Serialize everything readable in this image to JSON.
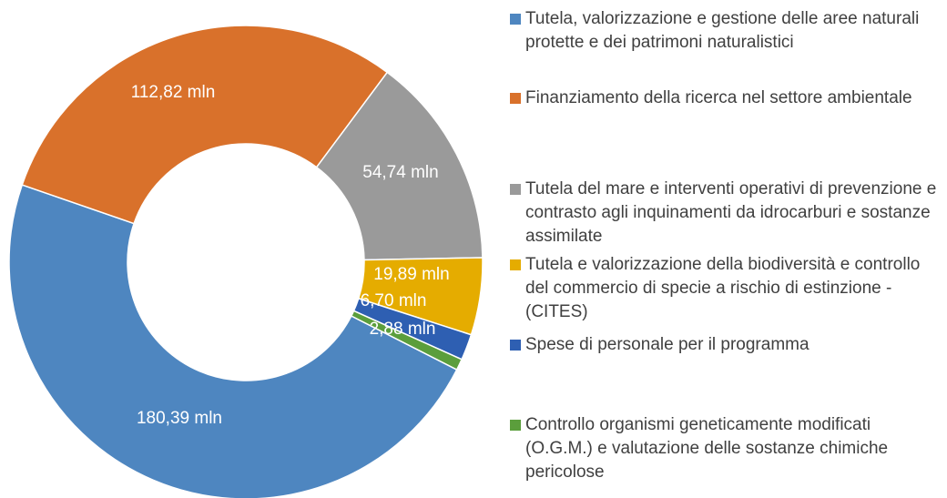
{
  "chart_data": {
    "type": "donut",
    "categories": [
      "Tutela, valorizzazione  e gestione delle aree naturali protette e dei patrimoni naturalistici",
      "Finanziamento della ricerca nel settore ambientale",
      "Tutela del mare e interventi operativi di prevenzione e contrasto agli inquinamenti da idrocarburi e sostanze assimilate",
      "Tutela e valorizzazione della biodiversità e controllo del commercio di specie a rischio di estinzione - (CITES)",
      "Spese di personale per il programma",
      "Controllo organismi geneticamente modificati (O.G.M.) e valutazione delle sostanze chimiche pericolose"
    ],
    "values": [
      180.39,
      112.82,
      54.74,
      19.89,
      6.7,
      2.88
    ],
    "value_labels": [
      "180,39 mln",
      "112,82 mln",
      "54,74 mln",
      "19,89 mln",
      "6,70 mln",
      "2,88 mln"
    ],
    "colors": [
      "#4e86c0",
      "#d9712b",
      "#9a9a9a",
      "#e5ac00",
      "#2e5fb2",
      "#5b9e3c"
    ]
  }
}
